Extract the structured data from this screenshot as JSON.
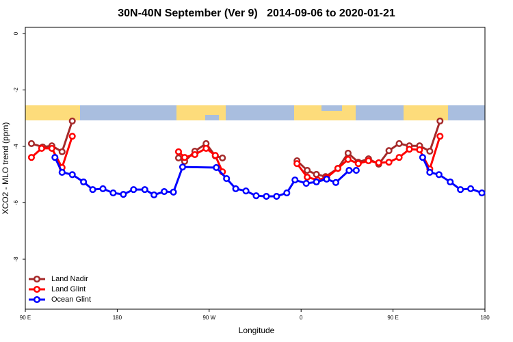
{
  "chart_data": {
    "type": "line",
    "title": "30N-40N September (Ver 9)   2014-09-06 to 2020-01-21",
    "x_label": "Longitude",
    "y_label": "XCO2 - MLO trend (ppm)",
    "xlim": [
      90,
      540
    ],
    "xticks": [
      {
        "value": 90,
        "label": "90 E"
      },
      180,
      {
        "value": 270,
        "label": "90 W"
      },
      {
        "value": 360,
        "label": "0"
      },
      {
        "value": 450,
        "label": "90 E"
      },
      {
        "value": 540,
        "label": "180"
      }
    ],
    "ylim": [
      -9.77,
      0.22
    ],
    "yticks": [
      0,
      -2,
      -4,
      -6,
      -8
    ],
    "legend": "bottom-left",
    "series": [
      {
        "name": "Land Nadir",
        "color": "#a52a2a",
        "x": [
          96,
          107,
          116,
          126,
          136,
          null,
          240,
          246,
          256,
          267,
          276,
          283,
          null,
          356,
          366,
          375,
          384,
          396,
          406,
          416,
          426,
          436,
          446,
          456,
          466,
          476,
          486,
          496
        ],
        "values": [
          -3.9,
          -4.02,
          -3.98,
          -4.19,
          -3.1,
          null,
          -4.41,
          -4.53,
          -4.17,
          -3.9,
          -4.34,
          -4.41,
          null,
          -4.51,
          -4.85,
          -4.99,
          -5.07,
          -4.78,
          -4.24,
          -4.56,
          -4.44,
          -4.63,
          -4.15,
          -3.9,
          -3.98,
          -3.98,
          -4.17,
          -3.1
        ]
      },
      {
        "name": "Land Glint",
        "color": "#ff0000",
        "x": [
          96,
          106,
          116,
          126,
          136,
          null,
          240,
          246,
          256,
          267,
          276,
          283,
          null,
          356,
          366,
          376,
          385,
          396,
          406,
          416,
          426,
          436,
          446,
          456,
          466,
          476,
          486,
          496
        ],
        "values": [
          -4.39,
          -4.07,
          -4.07,
          -4.75,
          -3.64,
          null,
          -4.19,
          -4.39,
          -4.29,
          -4.07,
          -4.32,
          -4.9,
          null,
          -4.61,
          -5.09,
          -5.19,
          -5.11,
          -4.78,
          -4.46,
          -4.61,
          -4.51,
          -4.58,
          -4.56,
          -4.39,
          -4.1,
          -4.12,
          -4.8,
          -3.64
        ]
      },
      {
        "name": "Ocean Glint",
        "color": "#0000ff",
        "x": [
          119,
          126,
          136,
          147,
          156,
          166,
          176,
          186,
          196,
          207,
          216,
          226,
          235,
          244,
          277,
          287,
          296,
          306,
          316,
          326,
          336,
          346,
          354,
          365,
          375,
          385,
          394,
          407,
          414,
          null,
          479,
          486,
          495,
          506,
          516,
          526,
          537
        ],
        "values": [
          -4.39,
          -4.92,
          -5.0,
          -5.26,
          -5.53,
          -5.5,
          -5.65,
          -5.7,
          -5.53,
          -5.53,
          -5.72,
          -5.6,
          -5.62,
          -4.73,
          -4.75,
          -5.14,
          -5.5,
          -5.58,
          -5.75,
          -5.77,
          -5.77,
          -5.65,
          -5.19,
          -5.31,
          -5.26,
          -5.16,
          -5.28,
          -4.85,
          -4.85,
          null,
          -4.39,
          -4.92,
          -5.0,
          -5.26,
          -5.53,
          -5.5,
          -5.65
        ]
      }
    ]
  }
}
